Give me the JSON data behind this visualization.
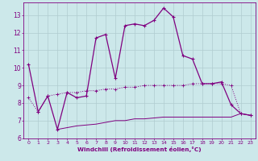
{
  "xlabel": "Windchill (Refroidissement éolien,°C)",
  "bg_color": "#cce8ea",
  "line_color": "#800080",
  "grid_color": "#b0ccd0",
  "xlim": [
    -0.5,
    23.5
  ],
  "ylim": [
    6,
    13.7
  ],
  "yticks": [
    6,
    7,
    8,
    9,
    10,
    11,
    12,
    13
  ],
  "xticks": [
    0,
    1,
    2,
    3,
    4,
    5,
    6,
    7,
    8,
    9,
    10,
    11,
    12,
    13,
    14,
    15,
    16,
    17,
    18,
    19,
    20,
    21,
    22,
    23
  ],
  "s1_x": [
    0,
    1,
    2,
    3,
    4,
    5,
    6,
    7,
    8,
    9,
    10,
    11,
    12,
    13,
    14,
    15,
    16,
    17,
    18,
    19,
    20,
    21,
    22,
    23
  ],
  "s1_y": [
    10.2,
    7.5,
    8.4,
    6.5,
    8.6,
    8.3,
    8.4,
    11.7,
    11.9,
    9.4,
    12.4,
    12.5,
    12.4,
    12.7,
    13.4,
    12.9,
    10.7,
    10.5,
    9.1,
    9.1,
    9.2,
    7.9,
    7.4,
    7.3
  ],
  "s2_x": [
    0,
    1,
    2,
    3,
    4,
    5,
    6,
    7,
    8,
    9,
    10,
    11,
    12,
    13,
    14,
    15,
    16,
    17,
    18,
    19,
    20,
    21,
    22,
    23
  ],
  "s2_y": [
    8.3,
    7.5,
    8.4,
    8.5,
    8.6,
    8.6,
    8.7,
    8.7,
    8.8,
    8.8,
    8.9,
    8.9,
    9.0,
    9.0,
    9.0,
    9.0,
    9.0,
    9.1,
    9.1,
    9.1,
    9.1,
    9.0,
    7.4,
    7.3
  ],
  "s3_x": [
    3,
    4,
    5,
    6,
    7,
    8,
    9,
    10,
    11,
    12,
    13,
    14,
    15,
    16,
    17,
    18,
    19,
    20,
    21,
    22,
    23
  ],
  "s3_y": [
    6.5,
    6.6,
    6.7,
    6.75,
    6.8,
    6.9,
    7.0,
    7.0,
    7.1,
    7.1,
    7.15,
    7.2,
    7.2,
    7.2,
    7.2,
    7.2,
    7.2,
    7.2,
    7.2,
    7.4,
    7.3
  ]
}
